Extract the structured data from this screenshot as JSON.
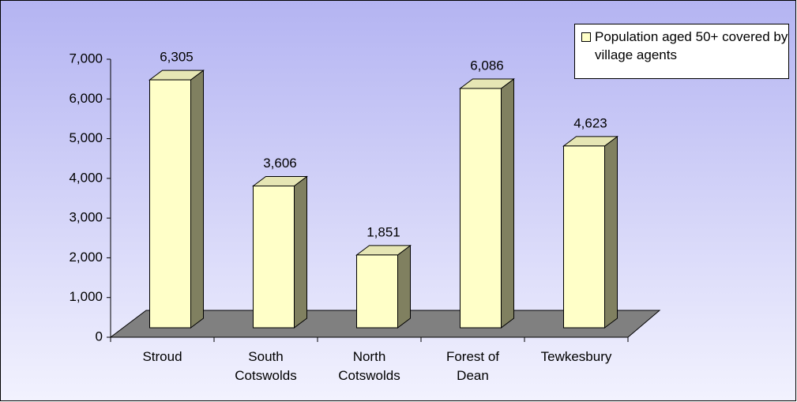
{
  "chart_data": {
    "type": "bar3d",
    "categories": [
      "Stroud",
      "South Cotswolds",
      "North Cotswolds",
      "Forest of Dean",
      "Tewkesbury"
    ],
    "series": [
      {
        "name": "Population aged 50+ covered by village agents",
        "color": "#ffffc8",
        "values": [
          6305,
          3606,
          1851,
          6086,
          4623
        ],
        "value_labels": [
          "6,305",
          "3,606",
          "1,851",
          "6,086",
          "4,623"
        ]
      }
    ],
    "ylim": [
      0,
      7000
    ],
    "yticks": [
      {
        "value": 0,
        "label": "0"
      },
      {
        "value": 1000,
        "label": "1,000"
      },
      {
        "value": 2000,
        "label": "2,000"
      },
      {
        "value": 3000,
        "label": "3,000"
      },
      {
        "value": 4000,
        "label": "4,000"
      },
      {
        "value": 5000,
        "label": "5,000"
      },
      {
        "value": 6000,
        "label": "6,000"
      },
      {
        "value": 7000,
        "label": "7,000"
      }
    ],
    "legend": "top-right"
  }
}
